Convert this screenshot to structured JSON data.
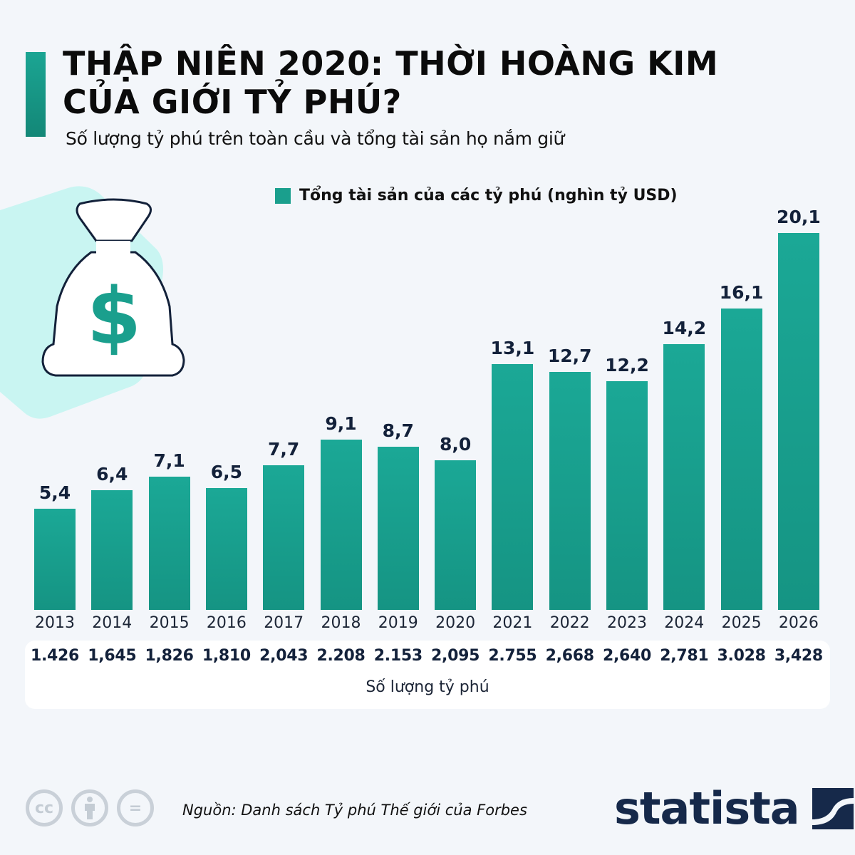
{
  "header": {
    "title_line1": "THẬP NIÊN 2020: THỜI HOÀNG KIM",
    "title_line2": "CỦA GIỚI TỶ PHÚ?",
    "subtitle": "Số lượng tỷ phú trên toàn cầu và tổng tài sản họ nắm giữ",
    "accent_color": "#1a9f8d"
  },
  "illustration": {
    "icon": "money-bag-icon",
    "symbol": "$"
  },
  "legend": {
    "label": "Tổng tài sản của các tỷ phú (nghìn tỷ USD)",
    "color": "#1a9f8d"
  },
  "bars": [
    {
      "year": "2013",
      "value": "5,4",
      "count": "1.426"
    },
    {
      "year": "2014",
      "value": "6,4",
      "count": "1,645"
    },
    {
      "year": "2015",
      "value": "7,1",
      "count": "1,826"
    },
    {
      "year": "2016",
      "value": "6,5",
      "count": "1,810"
    },
    {
      "year": "2017",
      "value": "7,7",
      "count": "2,043"
    },
    {
      "year": "2018",
      "value": "9,1",
      "count": "2.208"
    },
    {
      "year": "2019",
      "value": "8,7",
      "count": "2.153"
    },
    {
      "year": "2020",
      "value": "8,0",
      "count": "2,095"
    },
    {
      "year": "2021",
      "value": "13,1",
      "count": "2.755"
    },
    {
      "year": "2022",
      "value": "12,7",
      "count": "2,668"
    },
    {
      "year": "2023",
      "value": "12,2",
      "count": "2,640"
    },
    {
      "year": "2024",
      "value": "14,2",
      "count": "2,781"
    },
    {
      "year": "2025",
      "value": "16,1",
      "count": "3.028"
    },
    {
      "year": "2026",
      "value": "20,1",
      "count": "3,428"
    }
  ],
  "count_panel": {
    "label": "Số lượng tỷ phú"
  },
  "footer": {
    "license_icons": [
      "cc-icon",
      "attribution-icon",
      "no-derivatives-icon"
    ],
    "cc_text": "cc",
    "nd_text": "=",
    "source": "Nguồn: Danh sách Tỷ phú Thế giới của Forbes",
    "brand": "statista"
  },
  "chart_data": {
    "type": "bar",
    "title": "THẬP NIÊN 2020: THỜI HOÀNG KIM CỦA GIỚI TỶ PHÚ?",
    "subtitle": "Số lượng tỷ phú trên toàn cầu và tổng tài sản họ nắm giữ",
    "categories": [
      "2013",
      "2014",
      "2015",
      "2016",
      "2017",
      "2018",
      "2019",
      "2020",
      "2021",
      "2022",
      "2023",
      "2024",
      "2025",
      "2026"
    ],
    "series": [
      {
        "name": "Tổng tài sản của các tỷ phú (nghìn tỷ USD)",
        "values": [
          5.4,
          6.4,
          7.1,
          6.5,
          7.7,
          9.1,
          8.7,
          8.0,
          13.1,
          12.7,
          12.2,
          14.2,
          16.1,
          20.1
        ]
      },
      {
        "name": "Số lượng tỷ phú",
        "values": [
          1426,
          1645,
          1826,
          1810,
          2043,
          2208,
          2153,
          2095,
          2755,
          2668,
          2640,
          2781,
          3028,
          3428
        ]
      }
    ],
    "xlabel": "",
    "ylabel": "",
    "legend_position": "top",
    "grid": false,
    "source": "Nguồn: Danh sách Tỷ phú Thế giới của Forbes"
  }
}
